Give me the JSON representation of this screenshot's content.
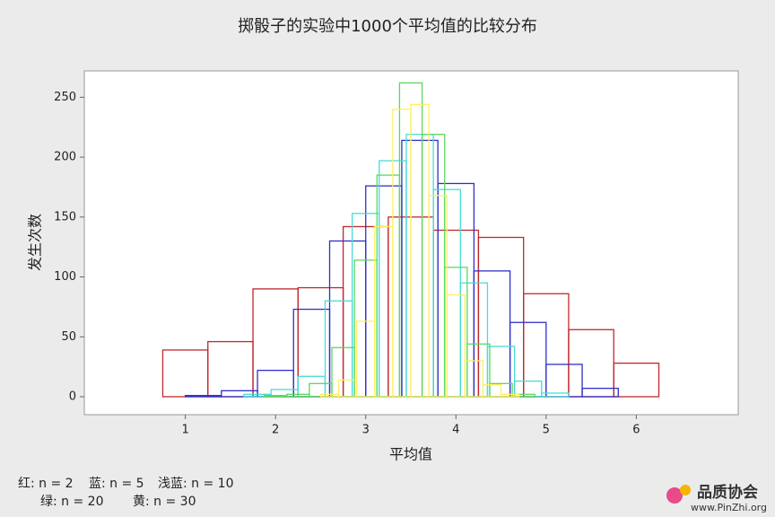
{
  "chart_data": {
    "type": "histogram",
    "title": "掷骰子的实验中1000个平均值的比较分布",
    "xlabel": "平均值",
    "ylabel": "发生次数",
    "xlim": [
      -0.12,
      7.13
    ],
    "ylim": [
      -15,
      272
    ],
    "xticks": [
      1,
      2,
      3,
      4,
      5,
      6
    ],
    "yticks": [
      0,
      50,
      100,
      150,
      200,
      250
    ],
    "annotations": [
      "红: n = 2",
      "蓝: n = 5",
      "浅蓝: n = 10",
      "绿: n = 20",
      "黄: n = 30"
    ],
    "watermark": [
      "品质协会",
      "www.PinZhi.org"
    ],
    "series": [
      {
        "color": "#c0282c",
        "bins": [
          0.75,
          1.25,
          1.75,
          2.25,
          2.75,
          3.25,
          3.75,
          4.25,
          4.75,
          5.25,
          5.75,
          6.25
        ],
        "values": [
          39,
          46,
          90,
          91,
          142,
          150,
          139,
          133,
          86,
          56,
          28
        ]
      },
      {
        "color": "#3030c8",
        "bins": [
          1.0,
          1.4,
          1.8,
          2.2,
          2.6,
          3.0,
          3.4,
          3.8,
          4.2,
          4.6,
          5.0,
          5.4,
          5.8
        ],
        "values": [
          1,
          5,
          22,
          73,
          130,
          176,
          214,
          178,
          105,
          62,
          27,
          7
        ]
      },
      {
        "color": "#48dcd8",
        "bins": [
          1.65,
          1.95,
          2.25,
          2.55,
          2.85,
          3.15,
          3.45,
          3.75,
          4.05,
          4.35,
          4.65,
          4.95,
          5.25
        ],
        "values": [
          2,
          6,
          17,
          80,
          153,
          197,
          219,
          173,
          95,
          42,
          13,
          3
        ]
      },
      {
        "color": "#5cd85c",
        "bins": [
          1.875,
          2.125,
          2.375,
          2.625,
          2.875,
          3.125,
          3.375,
          3.625,
          3.875,
          4.125,
          4.375,
          4.625,
          4.875
        ],
        "values": [
          1,
          2,
          11,
          41,
          114,
          185,
          262,
          219,
          108,
          44,
          11,
          2
        ]
      },
      {
        "color": "#fff060",
        "bins": [
          2.5,
          2.7,
          2.9,
          3.1,
          3.3,
          3.5,
          3.7,
          3.9,
          4.1,
          4.3,
          4.5,
          4.7
        ],
        "values": [
          2,
          14,
          63,
          142,
          240,
          244,
          168,
          85,
          30,
          10,
          2
        ]
      }
    ]
  }
}
